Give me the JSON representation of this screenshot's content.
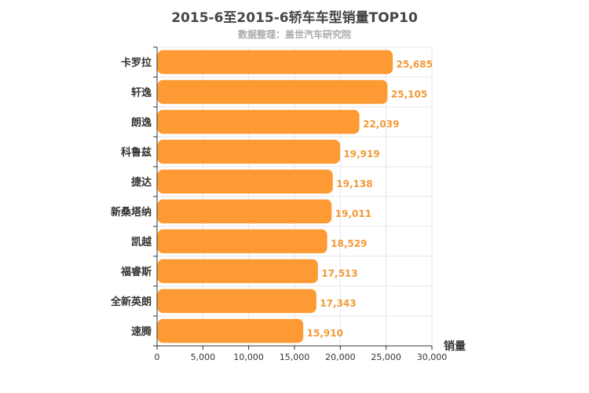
{
  "chart_data": {
    "type": "bar",
    "orientation": "horizontal",
    "title": "2015-6至2015-6轿车车型销量TOP10",
    "subtitle": "数据整理：盖世汽车研究院",
    "categories": [
      "卡罗拉",
      "轩逸",
      "朗逸",
      "科鲁兹",
      "捷达",
      "新桑塔纳",
      "凯越",
      "福睿斯",
      "全新英朗",
      "速腾"
    ],
    "values": [
      25685,
      25105,
      22039,
      19919,
      19138,
      19011,
      18529,
      17513,
      17343,
      15910
    ],
    "value_labels": [
      "25,685",
      "25,105",
      "22,039",
      "19,919",
      "19,138",
      "19,011",
      "18,529",
      "17,513",
      "17,343",
      "15,910"
    ],
    "xlabel": "销量",
    "ylabel": "",
    "xlim": [
      0,
      30000
    ],
    "xticks": [
      0,
      5000,
      10000,
      15000,
      20000,
      25000,
      30000
    ],
    "xtick_labels": [
      "0",
      "5,000",
      "10,000",
      "15,000",
      "20,000",
      "25,000",
      "30,000"
    ],
    "grid": true,
    "legend": "none",
    "colors": {
      "bar": "#fd9a33",
      "value_label": "#f39a36",
      "grid": "#e6e6e6",
      "axis": "#333333"
    }
  }
}
